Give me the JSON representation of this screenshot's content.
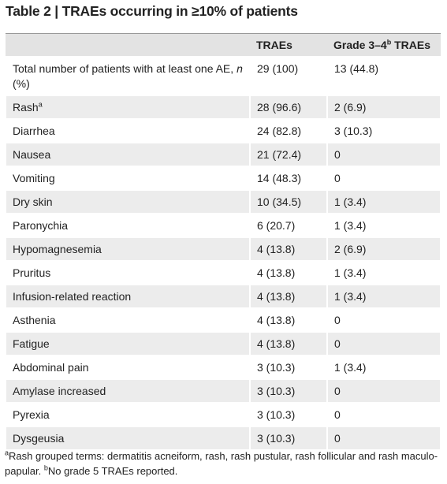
{
  "title": "Table 2 | TRAEs occurring in ≥10% of patients",
  "table": {
    "header": [
      "",
      "TRAEs",
      [
        "Grade 3–4",
        {
          "sup": "b"
        },
        " TRAEs"
      ]
    ],
    "rows": [
      [
        [
          "Total number of patients with at least one AE, ",
          {
            "i": "n"
          },
          " (%)"
        ],
        "29 (100)",
        "13 (44.8)"
      ],
      [
        [
          "Rash",
          {
            "sup": "a"
          }
        ],
        "28 (96.6)",
        "2 (6.9)"
      ],
      [
        "Diarrhea",
        "24 (82.8)",
        "3 (10.3)"
      ],
      [
        "Nausea",
        "21 (72.4)",
        "0"
      ],
      [
        "Vomiting",
        "14 (48.3)",
        "0"
      ],
      [
        "Dry skin",
        "10 (34.5)",
        "1 (3.4)"
      ],
      [
        "Paronychia",
        "6 (20.7)",
        "1 (3.4)"
      ],
      [
        "Hypomagnesemia",
        "4 (13.8)",
        "2 (6.9)"
      ],
      [
        "Pruritus",
        "4 (13.8)",
        "1 (3.4)"
      ],
      [
        "Infusion-related reaction",
        "4 (13.8)",
        "1 (3.4)"
      ],
      [
        "Asthenia",
        "4 (13.8)",
        "0"
      ],
      [
        "Fatigue",
        "4 (13.8)",
        "0"
      ],
      [
        "Abdominal pain",
        "3 (10.3)",
        "1 (3.4)"
      ],
      [
        "Amylase increased",
        "3 (10.3)",
        "0"
      ],
      [
        "Pyrexia",
        "3 (10.3)",
        "0"
      ],
      [
        "Dysgeusia",
        "3 (10.3)",
        "0"
      ]
    ]
  },
  "footnote": [
    {
      "sup": "a"
    },
    "Rash grouped terms: dermatitis acneiform, rash, rash pustular, rash follicular and rash maculo-papular. ",
    {
      "sup": "b"
    },
    "No grade 5 TRAEs reported."
  ]
}
